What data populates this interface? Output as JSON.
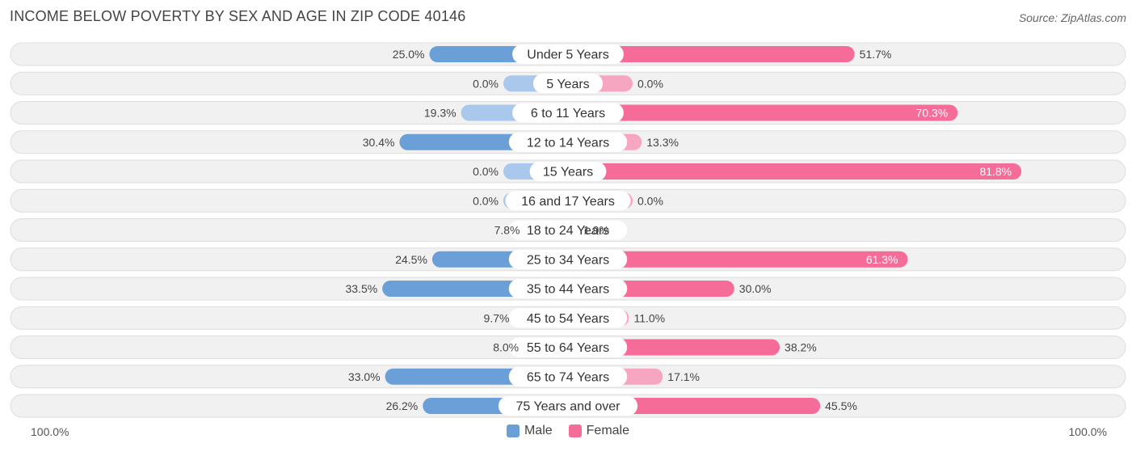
{
  "title": "INCOME BELOW POVERTY BY SEX AND AGE IN ZIP CODE 40146",
  "source": "Source: ZipAtlas.com",
  "legend": {
    "male": "Male",
    "female": "Female"
  },
  "axis": {
    "left_label": "100.0%",
    "right_label": "100.0%"
  },
  "colors": {
    "male_strong": "#6a9fd8",
    "male_light": "#a9c8ec",
    "female_strong": "#f46c97",
    "female_light": "#f7a6c1",
    "row_bg": "#f1f1f1",
    "row_border": "#dedede"
  },
  "chart_data": {
    "type": "bar",
    "orientation": "horizontal-diverging",
    "categories": [
      "Under 5 Years",
      "5 Years",
      "6 to 11 Years",
      "12 to 14 Years",
      "15 Years",
      "16 and 17 Years",
      "18 to 24 Years",
      "25 to 34 Years",
      "35 to 44 Years",
      "45 to 54 Years",
      "55 to 64 Years",
      "65 to 74 Years",
      "75 Years and over"
    ],
    "series": [
      {
        "name": "Male",
        "values": [
          25.0,
          0.0,
          19.3,
          30.4,
          0.0,
          0.0,
          7.8,
          24.5,
          33.5,
          9.7,
          8.0,
          33.0,
          26.2
        ]
      },
      {
        "name": "Female",
        "values": [
          51.7,
          0.0,
          70.3,
          13.3,
          81.8,
          0.0,
          1.9,
          61.3,
          30.0,
          11.0,
          38.2,
          17.1,
          45.5
        ]
      }
    ],
    "xlim": [
      -100,
      100
    ],
    "value_labels": {
      "male": [
        "25.0%",
        "0.0%",
        "19.3%",
        "30.4%",
        "0.0%",
        "0.0%",
        "7.8%",
        "24.5%",
        "33.5%",
        "9.7%",
        "8.0%",
        "33.0%",
        "26.2%"
      ],
      "female": [
        "51.7%",
        "0.0%",
        "70.3%",
        "13.3%",
        "81.8%",
        "0.0%",
        "1.9%",
        "61.3%",
        "30.0%",
        "11.0%",
        "38.2%",
        "17.1%",
        "45.5%"
      ]
    },
    "legend_position": "bottom-center"
  }
}
